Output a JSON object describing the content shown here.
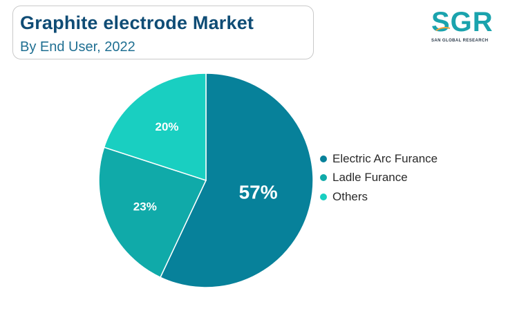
{
  "header": {
    "title": "Graphite electrode Market",
    "subtitle": "By End User, 2022"
  },
  "logo": {
    "mark": "SGR",
    "tagline": "SAN GLOBAL RESEARCH"
  },
  "chart_data": {
    "type": "pie",
    "categories": [
      "Electric Arc Furance",
      "Ladle Furance",
      "Others"
    ],
    "values": [
      57,
      23,
      20
    ],
    "labels": [
      "57%",
      "23%",
      "20%"
    ],
    "colors": [
      "#07819a",
      "#10aaa9",
      "#19cfc1"
    ],
    "start_angle_deg": 0,
    "direction": "clockwise",
    "legend_position": "right"
  }
}
